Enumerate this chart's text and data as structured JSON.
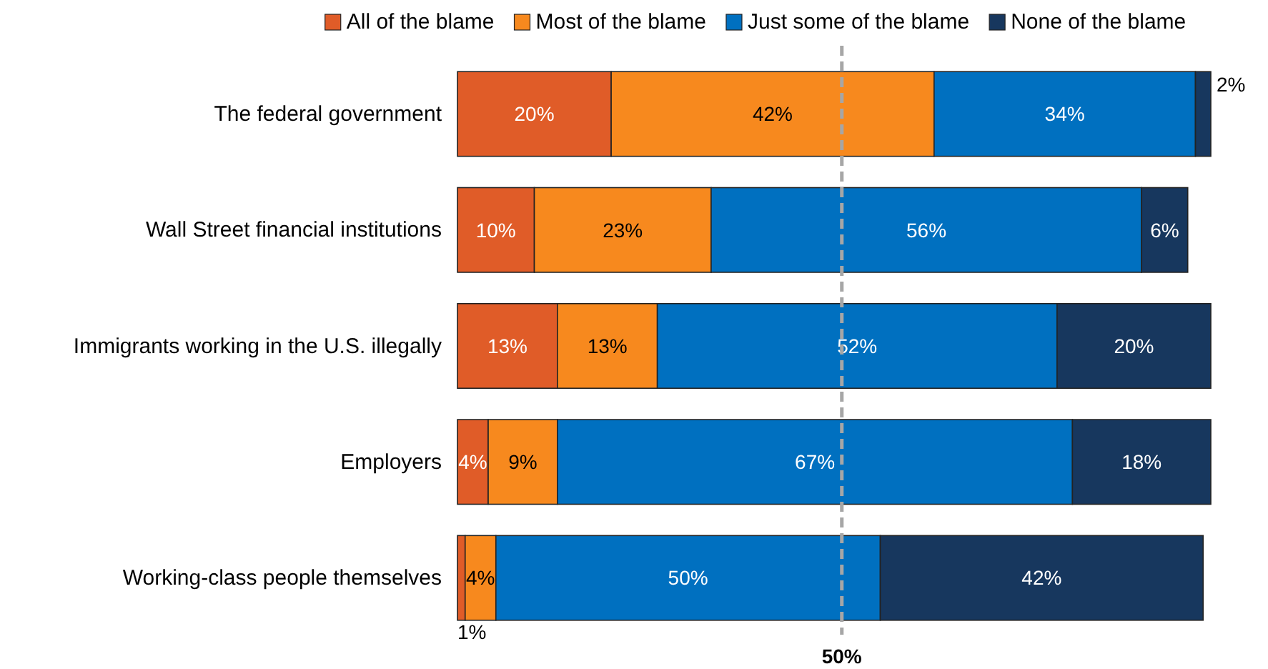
{
  "chart_data": {
    "type": "bar",
    "orientation": "horizontal",
    "stacked": true,
    "categories": [
      "The federal government",
      "Wall Street financial institutions",
      "Immigrants working in the U.S. illegally",
      "Employers",
      "Working-class people themselves"
    ],
    "series": [
      {
        "name": "All of the blame",
        "color": "#e05c28",
        "values": [
          20,
          10,
          13,
          4,
          1
        ],
        "value_labels": [
          "20%",
          "10%",
          "13%",
          "4%",
          "1%"
        ]
      },
      {
        "name": "Most of the blame",
        "color": "#f7891e",
        "values": [
          42,
          23,
          13,
          9,
          4
        ],
        "value_labels": [
          "42%",
          "23%",
          "13%",
          "9%",
          "4%"
        ]
      },
      {
        "name": "Just some of the blame",
        "color": "#0070c0",
        "values": [
          34,
          56,
          52,
          67,
          50
        ],
        "value_labels": [
          "34%",
          "56%",
          "52%",
          "67%",
          "50%"
        ]
      },
      {
        "name": "None of the blame",
        "color": "#17375e",
        "values": [
          2,
          6,
          20,
          18,
          42
        ],
        "value_labels": [
          "2%",
          "6%",
          "20%",
          "18%",
          "42%"
        ]
      }
    ],
    "tick_labels": "y",
    "legend": "top",
    "ref_lines": [
      {
        "axis": "x",
        "value": 50,
        "label": "50%",
        "color": "#a6a6a6",
        "line_style": "dashed"
      }
    ]
  }
}
